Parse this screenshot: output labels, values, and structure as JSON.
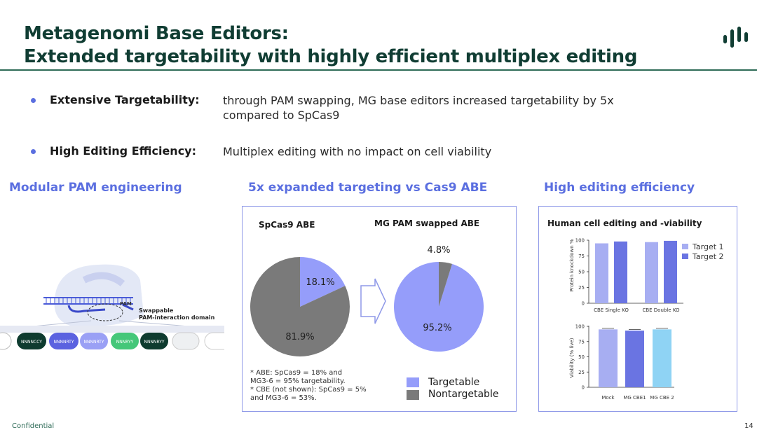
{
  "header": {
    "title_line1": "Metagenomi Base Editors:",
    "title_line2": "Extended targetability with highly efficient multiplex editing",
    "logo_icon": "bars-logo-icon"
  },
  "bullets": [
    {
      "label": "Extensive Targetability:",
      "text": "through PAM swapping, MG base editors increased targetability by 5x compared to SpCas9"
    },
    {
      "label": "High Editing Efficiency:",
      "text": "Multiplex editing with no impact on cell viability"
    }
  ],
  "sections": {
    "left_heading": "Modular PAM engineering",
    "mid_heading": "5x expanded targeting vs Cas9 ABE",
    "right_heading": "High editing efficiency"
  },
  "diagram": {
    "pam_label": "PAM",
    "domain_label_1": "Swappable",
    "domain_label_2": "PAM-interaction domain",
    "pills": [
      "NNNNCCY",
      "NNNNRTY",
      "NNNNRTY",
      "NNNRYY",
      "NNNNRYY",
      "",
      ""
    ]
  },
  "colors": {
    "brand": "#103d33",
    "accent": "#5b6fe0",
    "targetable": "#959dfa",
    "nontargetable": "#7a7a7a",
    "target1": "#a7aef2",
    "target2": "#6a74e2",
    "viab_mock": "#a7aef2",
    "viab_cbe1": "#6a74e2",
    "viab_cbe2": "#8fd3f4"
  },
  "pies": {
    "left_title": "SpCas9 ABE",
    "right_title": "MG PAM swapped ABE",
    "note_1": "* ABE: SpCas9 = 18% and",
    "note_2": "MG3-6 = 95% targetability.",
    "note_3": "* CBE (not shown): SpCas9 = 5%",
    "note_4": "and MG3-6 = 53%.",
    "legend_targetable": "Targetable",
    "legend_nontargetable": "Nontargetable"
  },
  "right_panel_title": "Human cell editing and -viability",
  "footer": {
    "left": "Confidential",
    "page": "14"
  },
  "chart_data": [
    {
      "type": "pie",
      "title": "SpCas9 ABE",
      "labels": [
        "Targetable",
        "Nontargetable"
      ],
      "values": [
        18.1,
        81.9
      ],
      "value_labels": [
        "18.1%",
        "81.9%"
      ]
    },
    {
      "type": "pie",
      "title": "MG PAM swapped ABE",
      "labels": [
        "Targetable",
        "Nontargetable"
      ],
      "values": [
        95.2,
        4.8
      ],
      "value_labels": [
        "95.2%",
        "4.8%"
      ]
    },
    {
      "type": "bar",
      "title": "",
      "ylabel": "Protein knockdown %",
      "categories": [
        "CBE Single KO",
        "CBE Double KO"
      ],
      "series": [
        {
          "name": "Target 1",
          "values": [
            95,
            97
          ]
        },
        {
          "name": "Target 2",
          "values": [
            98,
            99
          ]
        }
      ],
      "ylim": [
        0,
        100
      ],
      "yticks": [
        "0",
        "25",
        "50",
        "75",
        "100"
      ]
    },
    {
      "type": "bar",
      "title": "",
      "ylabel": "Viability (% live)",
      "categories": [
        "Mock",
        "MG CBE1",
        "MG CBE 2"
      ],
      "values": [
        95,
        93,
        95
      ],
      "ylim": [
        0,
        100
      ],
      "yticks": [
        "0",
        "25",
        "50",
        "75",
        "100"
      ]
    }
  ]
}
